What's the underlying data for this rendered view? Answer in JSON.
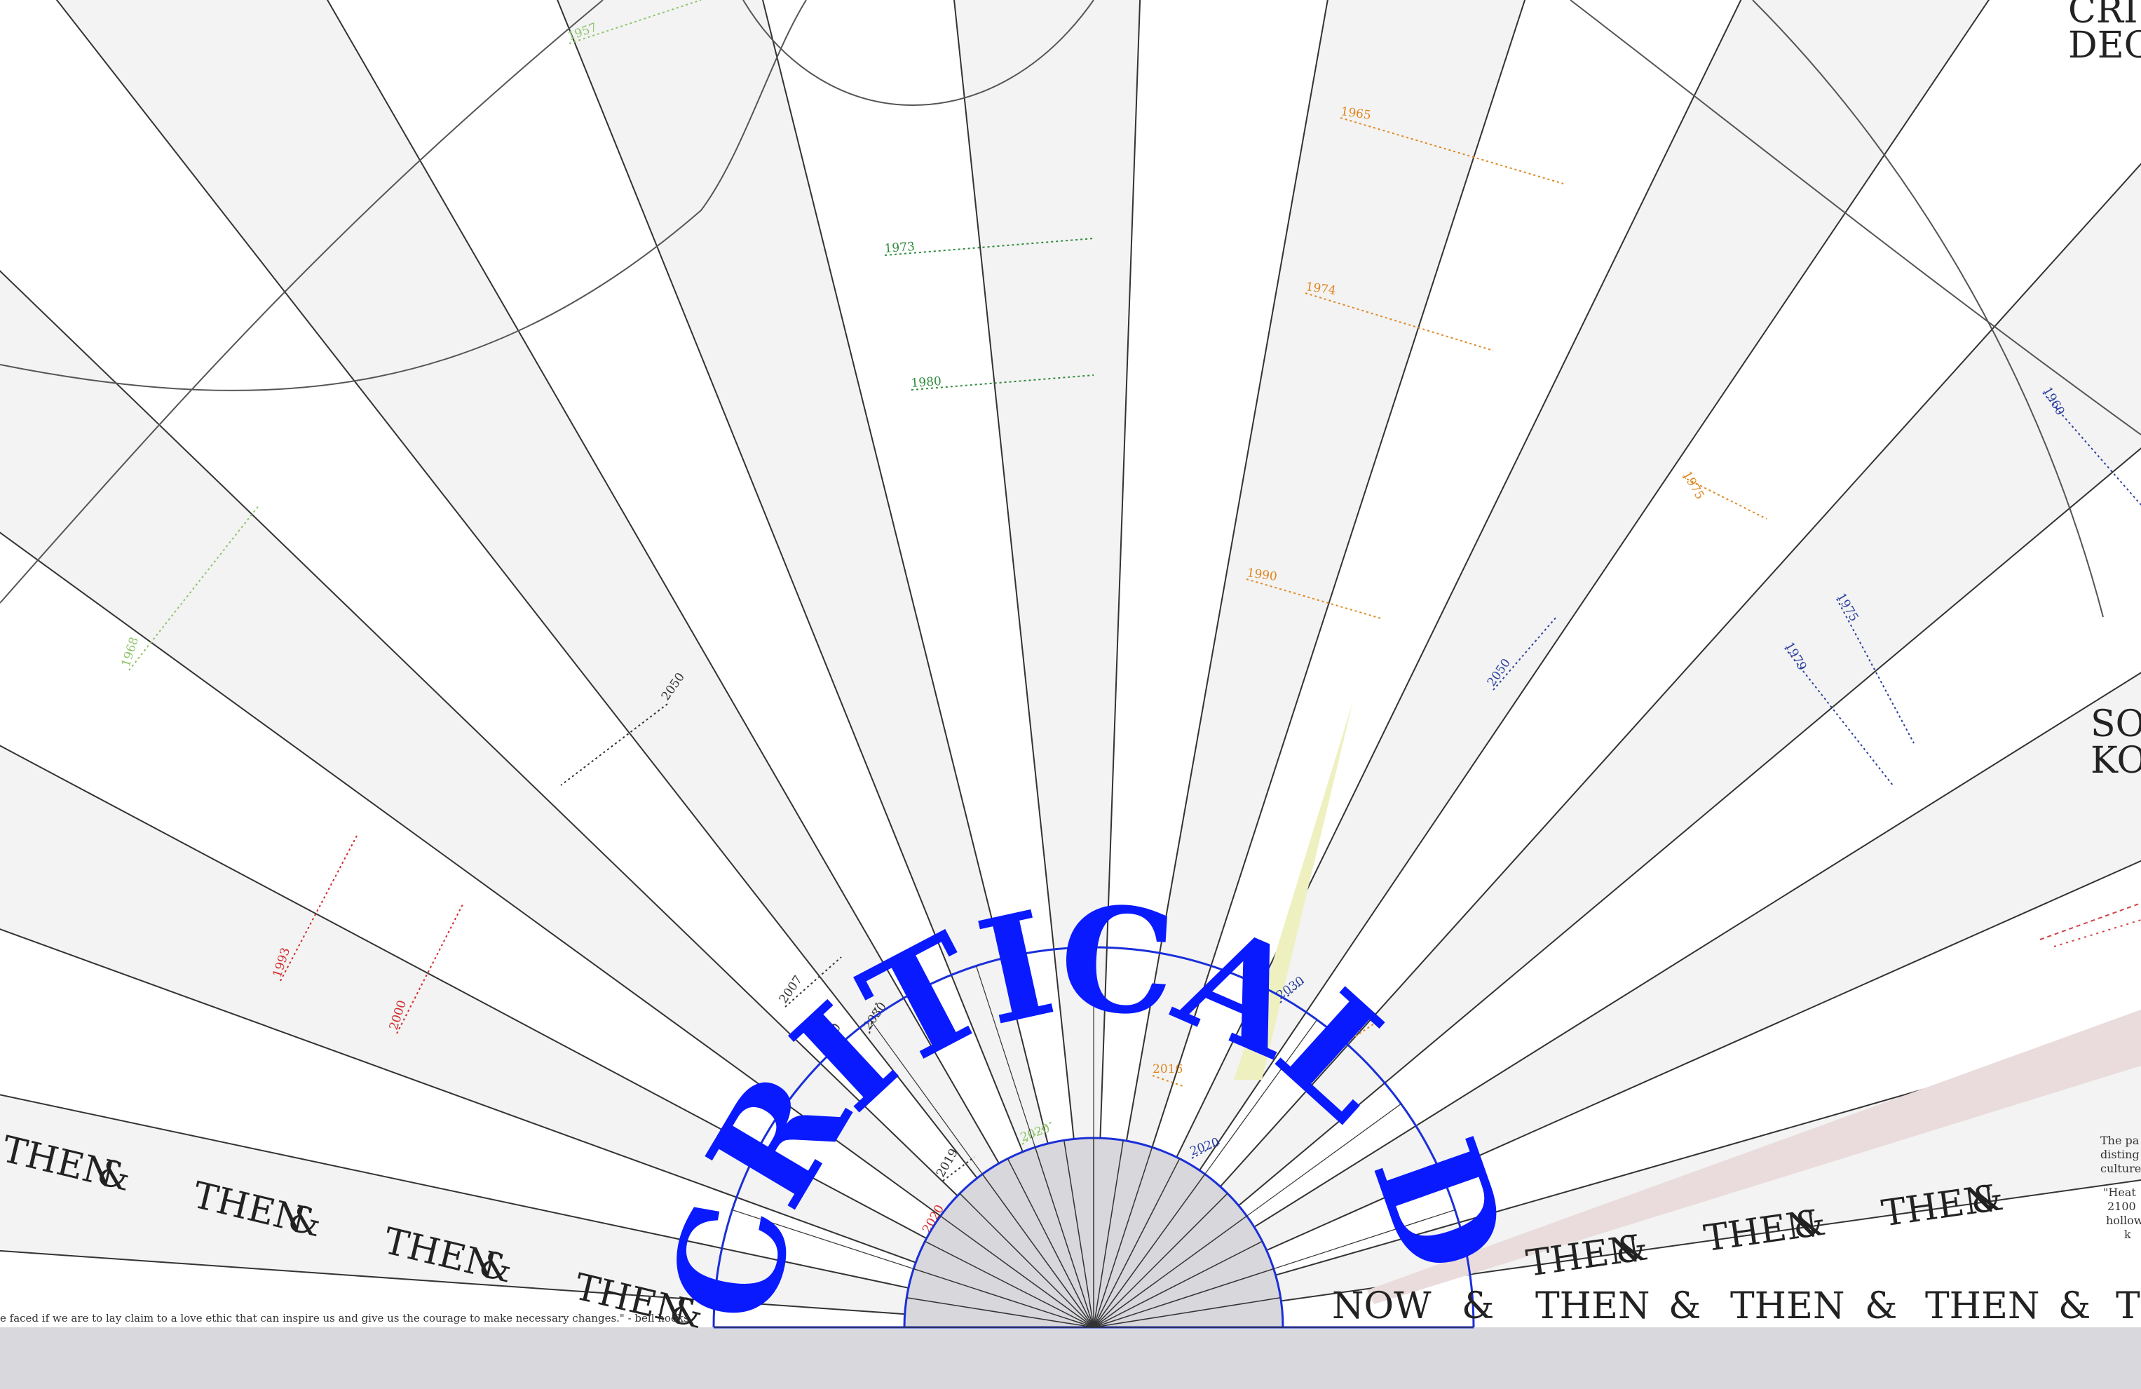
{
  "colors": {
    "background": "#ffffff",
    "wedge_fill": "#f3f3f3",
    "ray": "#333333",
    "hub_fill": "#d7d7dc",
    "accent_blue": "#0a1aff",
    "green": "#2e8b3a",
    "light_green": "#8fc46a",
    "orange": "#e0861f",
    "red": "#d42a2a",
    "navy": "#2a3f9f",
    "highlight_yellow": "#eef0c0",
    "highlight_pink": "#eadcdc",
    "bottom_band": "#d8d8dd"
  },
  "center_arc_title": "CRITICAL DECADE",
  "corner_titles": {
    "top_right_line1": "CRI",
    "top_right_line2": "DEC",
    "mid_right_line1": "SO",
    "mid_right_line2": "KO"
  },
  "then_now_rows": {
    "left_band": [
      "THEN",
      "&",
      "THEN",
      "&",
      "THEN",
      "&",
      "THEN",
      "&"
    ],
    "right_upper_band": [
      "THEN",
      "&",
      "THEN",
      "&",
      "THEN",
      "&"
    ],
    "right_lower_band": [
      "NOW",
      "&",
      "THEN",
      "&",
      "THEN",
      "&",
      "THEN",
      "&",
      "T"
    ]
  },
  "quote": "e faced if we are to lay claim to a love ethic that can inspire us and give us the courage to make necessary changes.\" - bell hooks",
  "right_edge_text": {
    "line1": "The pa",
    "line2": "disting",
    "line3": "culture",
    "line4": "\"Heat",
    "line5": "2100",
    "line6": "hollow",
    "line7": "k"
  },
  "year_labels": [
    {
      "text": "1957",
      "color": "light_green"
    },
    {
      "text": "1973",
      "color": "green"
    },
    {
      "text": "1980",
      "color": "green"
    },
    {
      "text": "1968",
      "color": "light_green"
    },
    {
      "text": "2050",
      "color": "dark"
    },
    {
      "text": "1993",
      "color": "red"
    },
    {
      "text": "2000",
      "color": "red"
    },
    {
      "text": "2007",
      "color": "dark"
    },
    {
      "text": "2030",
      "color": "dark"
    },
    {
      "text": "2010",
      "color": "dark"
    },
    {
      "text": "2020",
      "color": "light_green"
    },
    {
      "text": "2019",
      "color": "dark"
    },
    {
      "text": "2020",
      "color": "red"
    },
    {
      "text": "1965",
      "color": "orange"
    },
    {
      "text": "1974",
      "color": "orange"
    },
    {
      "text": "1990",
      "color": "orange"
    },
    {
      "text": "1975",
      "color": "orange"
    },
    {
      "text": "1960",
      "color": "navy"
    },
    {
      "text": "1975",
      "color": "navy"
    },
    {
      "text": "1979",
      "color": "navy"
    },
    {
      "text": "2050",
      "color": "navy"
    },
    {
      "text": "2030",
      "color": "navy"
    },
    {
      "text": "2080",
      "color": "orange"
    },
    {
      "text": "2016",
      "color": "orange"
    },
    {
      "text": "2020",
      "color": "navy"
    }
  ]
}
